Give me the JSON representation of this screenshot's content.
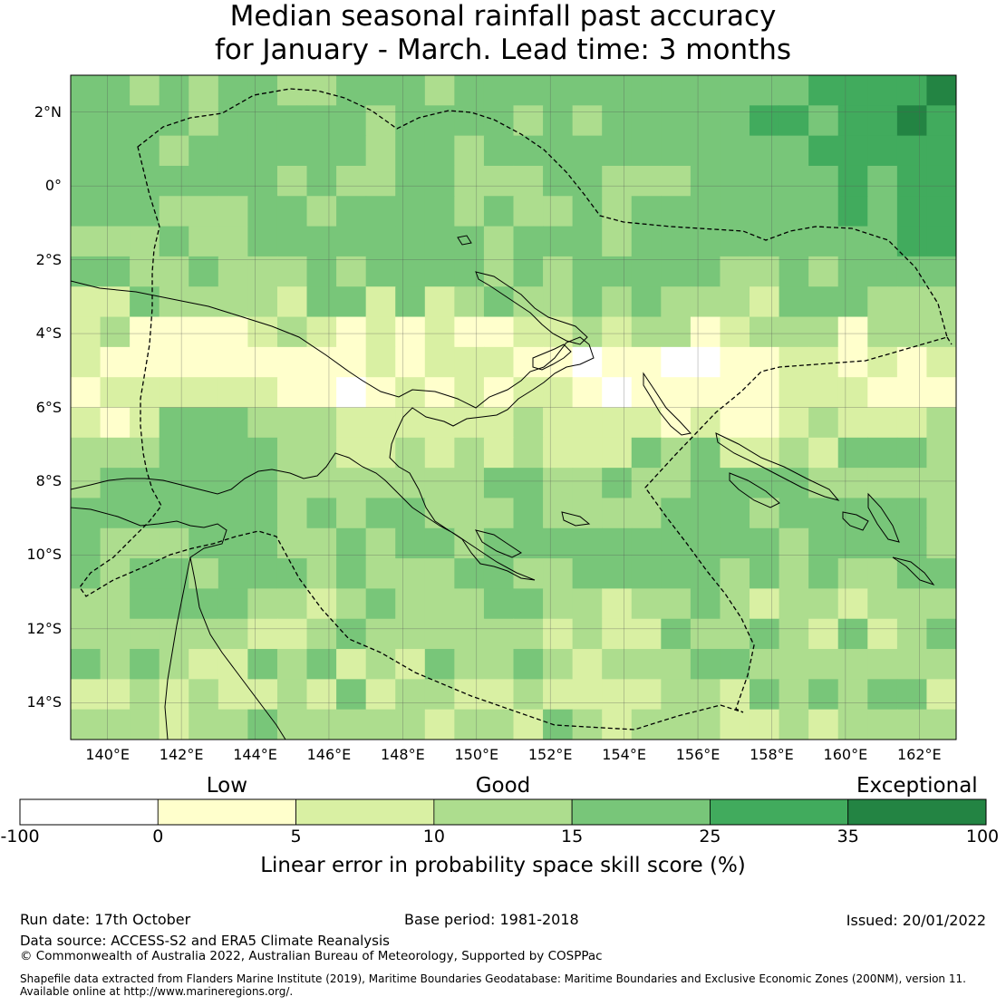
{
  "title_line1": "Median seasonal rainfall past accuracy",
  "title_line2": "for January - March. Lead time: 3 months",
  "map": {
    "lat_range": [
      -15,
      3
    ],
    "lon_range": [
      139,
      163
    ],
    "lat_ticks": [
      {
        "value": 2,
        "label": "2°N"
      },
      {
        "value": 0,
        "label": "0°"
      },
      {
        "value": -2,
        "label": "2°S"
      },
      {
        "value": -4,
        "label": "4°S"
      },
      {
        "value": -6,
        "label": "6°S"
      },
      {
        "value": -8,
        "label": "8°S"
      },
      {
        "value": -10,
        "label": "10°S"
      },
      {
        "value": -12,
        "label": "12°S"
      },
      {
        "value": -14,
        "label": "14°S"
      }
    ],
    "lon_ticks": [
      {
        "value": 140,
        "label": "140°E"
      },
      {
        "value": 142,
        "label": "142°E"
      },
      {
        "value": 144,
        "label": "144°E"
      },
      {
        "value": 146,
        "label": "146°E"
      },
      {
        "value": 148,
        "label": "148°E"
      },
      {
        "value": 150,
        "label": "150°E"
      },
      {
        "value": 152,
        "label": "152°E"
      },
      {
        "value": 154,
        "label": "154°E"
      },
      {
        "value": 156,
        "label": "156°E"
      },
      {
        "value": 158,
        "label": "158°E"
      },
      {
        "value": 160,
        "label": "160°E"
      },
      {
        "value": 162,
        "label": "162°E"
      }
    ]
  },
  "colorbar": {
    "categories": [
      {
        "label": "Low",
        "value": 0
      },
      {
        "label": "Good",
        "value": 10
      },
      {
        "label": "Exceptional",
        "value": 35
      }
    ],
    "bins": [
      {
        "from": -100,
        "to": 0,
        "color": "#ffffff"
      },
      {
        "from": 0,
        "to": 5,
        "color": "#ffffcc"
      },
      {
        "from": 5,
        "to": 10,
        "color": "#d9f0a3"
      },
      {
        "from": 10,
        "to": 15,
        "color": "#addd8e"
      },
      {
        "from": 15,
        "to": 25,
        "color": "#78c679"
      },
      {
        "from": 25,
        "to": 35,
        "color": "#41ab5d"
      },
      {
        "from": 35,
        "to": 100,
        "color": "#238443"
      }
    ],
    "tick_labels": [
      "-100",
      "0",
      "5",
      "10",
      "15",
      "25",
      "35",
      "100"
    ],
    "label": "Linear error in probability space skill score (%)"
  },
  "footer": {
    "run_date": "Run date: 17th October",
    "base_period": "Base period: 1981-2018",
    "issued": "Issued: 20/01/2022",
    "data_source": "Data source: ACCESS-S2 and ERA5 Climate Reanalysis",
    "copyright": "© Commonwealth of Australia 2022, Australian Bureau of Meteorology, Supported by COSPPac",
    "shapefile_line1": "Shapefile data extracted from Flanders Marine Institute (2019), Maritime Boundaries Geodatabase: Maritime Boundaries and Exclusive Economic Zones (200NM), version 11.",
    "shapefile_line2": "Available online at http://www.marineregions.org/."
  }
}
